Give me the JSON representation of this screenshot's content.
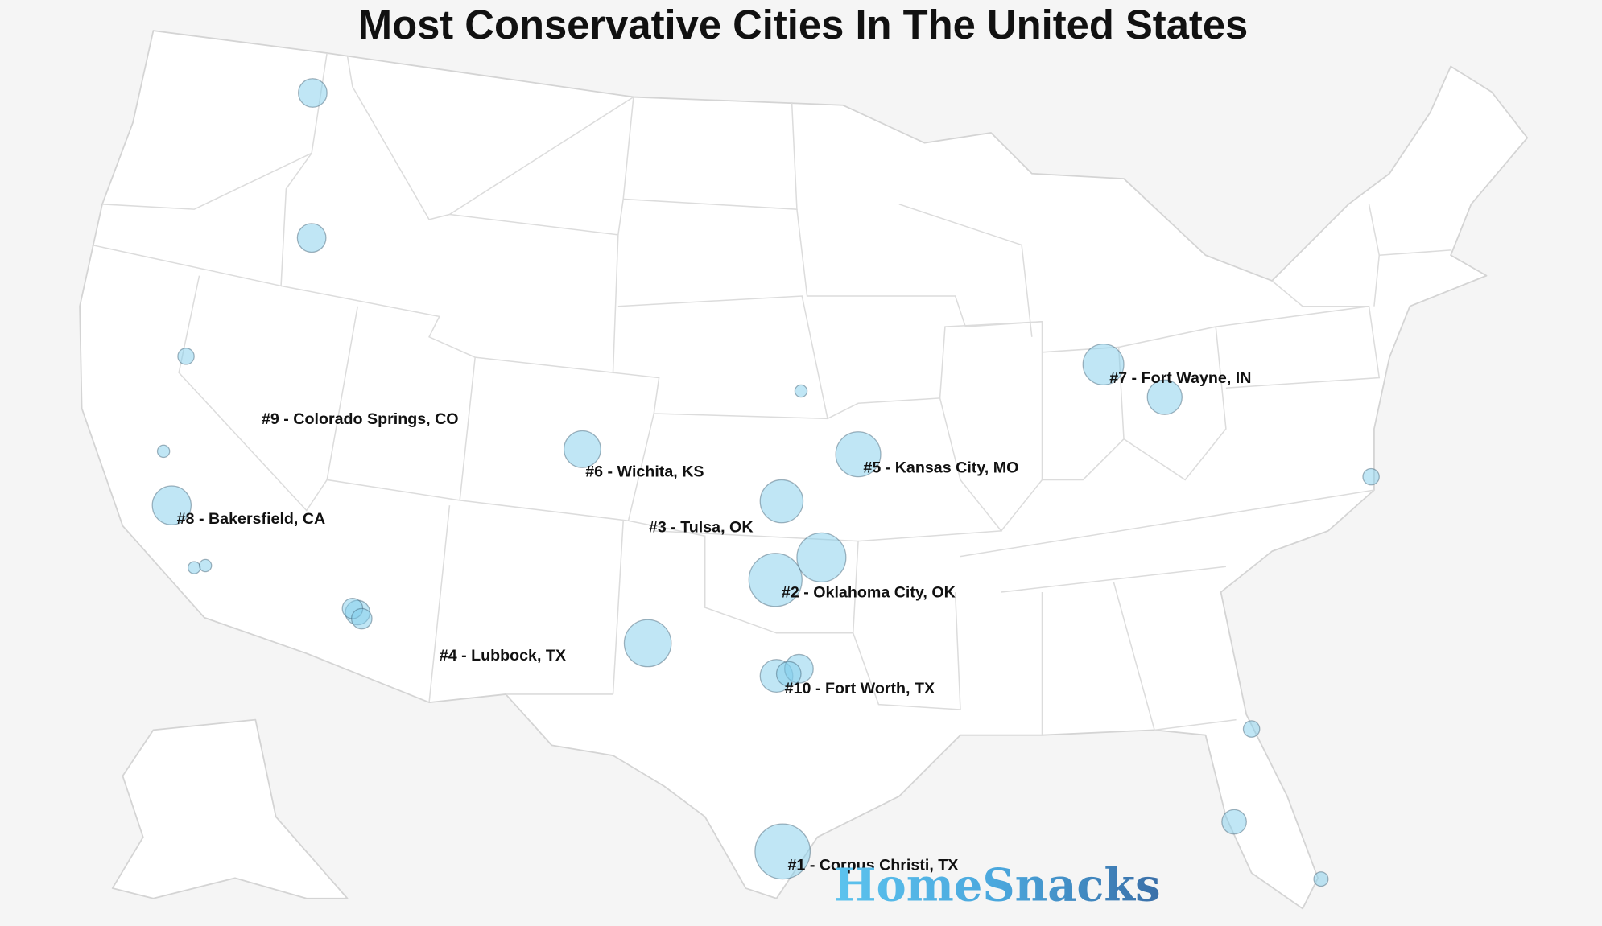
{
  "title": "Most Conservative Cities In The United States",
  "labels": [
    "#9 - Colorado Springs, CO",
    "#6 - Wichita, KS",
    "#8 - Bakersfield, CA",
    "#3 - Tulsa, OK",
    "#2 - Oklahoma City, OK",
    "#4 - Lubbock, TX",
    "#10 - Fort Worth, TX",
    "#5 - Kansas City, MO",
    "#7 - Fort Wayne, IN",
    "#1 - Corpus Christi, TX"
  ],
  "brand": "HomeSnacks"
}
